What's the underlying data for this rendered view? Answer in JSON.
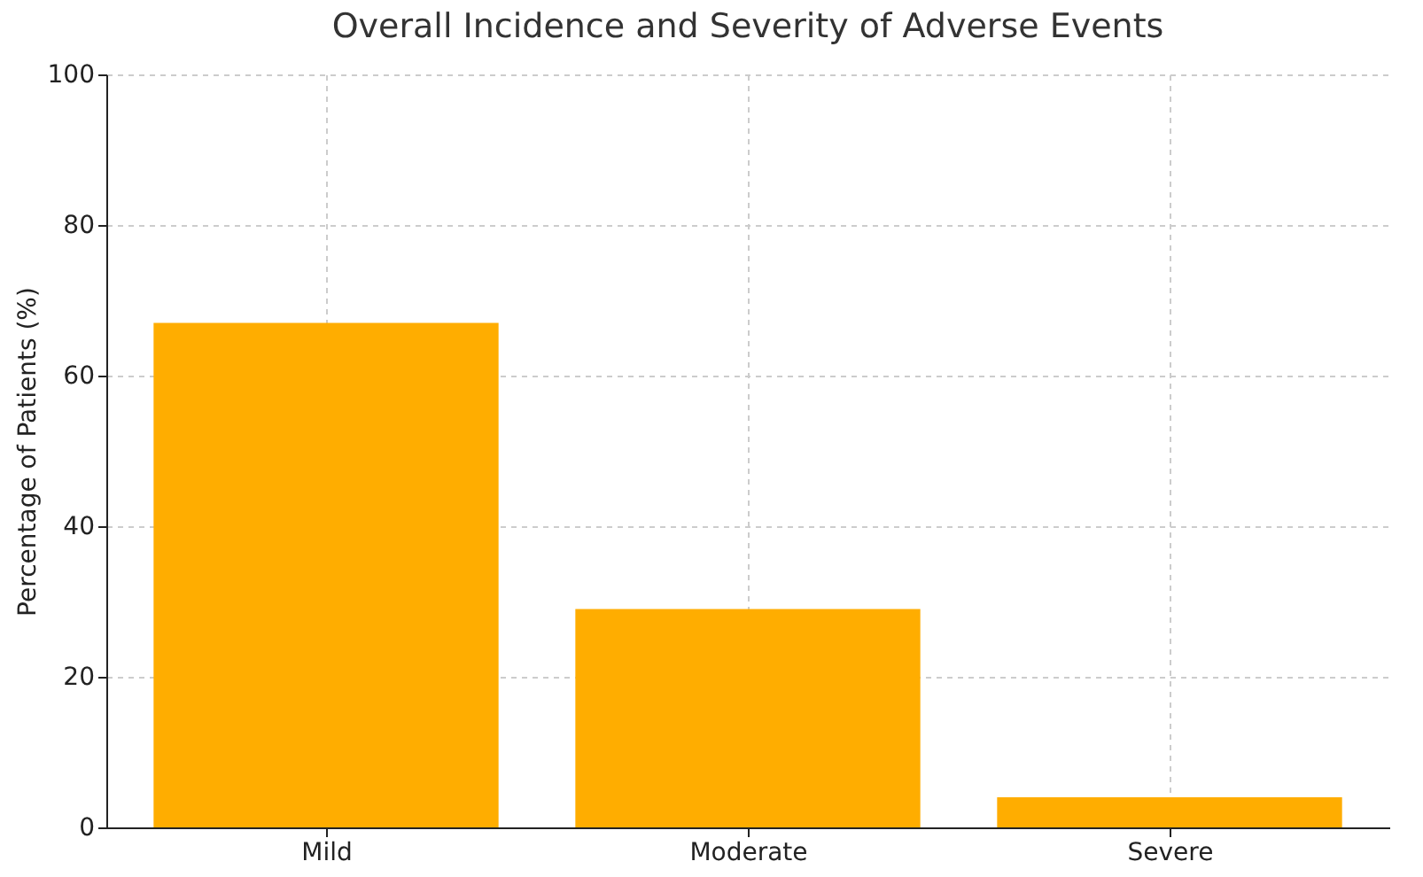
{
  "chart_data": {
    "type": "bar",
    "title": "Overall Incidence and Severity of Adverse Events",
    "ylabel": "Percentage of Patients (%)",
    "categories": [
      "Mild",
      "Moderate",
      "Severe"
    ],
    "values": [
      67,
      29,
      4
    ],
    "color": "#ffad00",
    "ylim": [
      0,
      100
    ],
    "yticks": [
      0,
      20,
      40,
      60,
      80,
      100
    ],
    "grid": true
  }
}
